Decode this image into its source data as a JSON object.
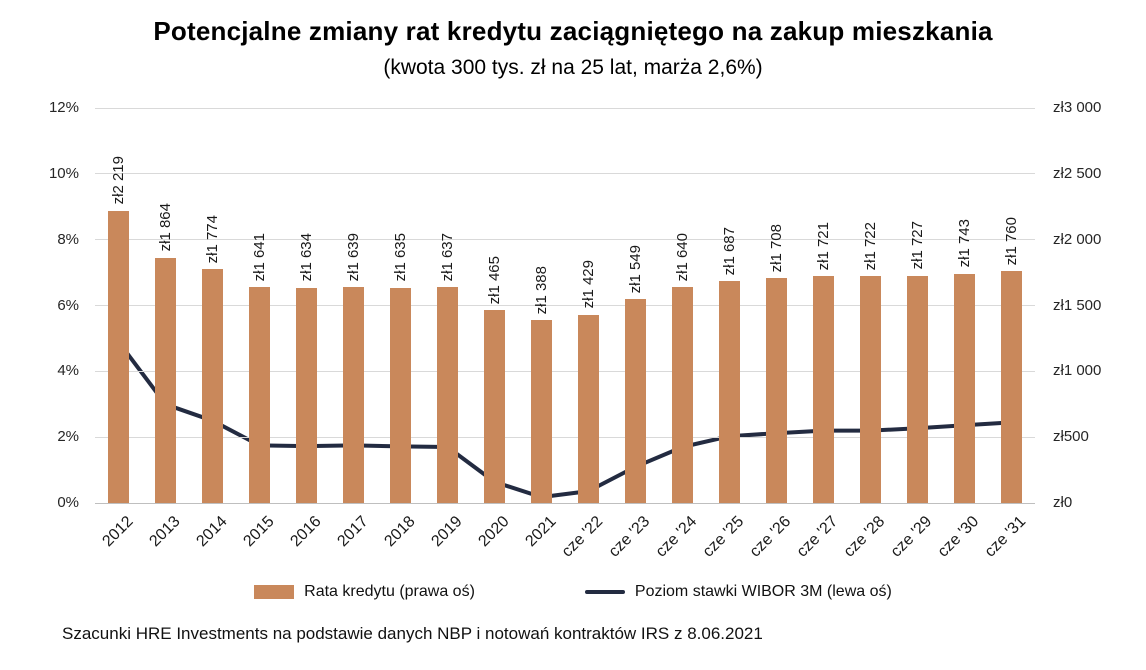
{
  "title": "Potencjalne zmiany rat kredytu zaciągniętego na zakup mieszkania",
  "subtitle": "(kwota 300 tys. zł na 25 lat, marża 2,6%)",
  "footer": "Szacunki HRE Investments na podstawie danych NBP i notowań kontraktów IRS z 8.06.2021",
  "legend": {
    "bars": "Rata kredytu (prawa oś)",
    "line": "Poziom stawki WIBOR 3M (lewa oś)"
  },
  "colors": {
    "bar": "#C9885B",
    "line": "#232B41",
    "grid": "#D9D9D9"
  },
  "chart_data": {
    "type": "bar",
    "subtype": "bar+line combo, dual axis",
    "categories": [
      "2012",
      "2013",
      "2014",
      "2015",
      "2016",
      "2017",
      "2018",
      "2019",
      "2020",
      "2021",
      "cze '22",
      "cze '23",
      "cze '24",
      "cze '25",
      "cze '26",
      "cze '27",
      "cze '28",
      "cze '29",
      "cze '30",
      "cze '31"
    ],
    "series": [
      {
        "name": "Rata kredytu (prawa oś)",
        "type": "bar",
        "axis": "right",
        "values": [
          2219,
          1864,
          1774,
          1641,
          1634,
          1639,
          1635,
          1637,
          1465,
          1388,
          1429,
          1549,
          1640,
          1687,
          1708,
          1721,
          1722,
          1727,
          1743,
          1760
        ],
        "labels": [
          "zł2 219",
          "zł1 864",
          "zł1 774",
          "zł1 641",
          "zł1 634",
          "zł1 639",
          "zł1 635",
          "zł1 637",
          "zł1 465",
          "zł1 388",
          "zł1 429",
          "zł1 549",
          "zł1 640",
          "zł1 687",
          "zł1 708",
          "zł1 721",
          "zł1 722",
          "zł1 727",
          "zł1 743",
          "zł1 760"
        ]
      },
      {
        "name": "Poziom stawki WIBOR 3M (lewa oś)",
        "type": "line",
        "axis": "left",
        "values": [
          4.9,
          3.0,
          2.5,
          1.75,
          1.73,
          1.75,
          1.72,
          1.7,
          0.64,
          0.18,
          0.36,
          1.1,
          1.7,
          2.03,
          2.12,
          2.2,
          2.2,
          2.27,
          2.36,
          2.45
        ]
      }
    ],
    "left_axis": {
      "label": "",
      "min": 0,
      "max": 12,
      "ticks": [
        "0%",
        "2%",
        "4%",
        "6%",
        "8%",
        "10%",
        "12%"
      ]
    },
    "right_axis": {
      "label": "",
      "min": 0,
      "max": 3000,
      "ticks": [
        "zł0",
        "zł500",
        "zł1 000",
        "zł1 500",
        "zł2 000",
        "zł2 500",
        "zł3 000"
      ]
    },
    "grid": true,
    "legend_position": "bottom"
  }
}
